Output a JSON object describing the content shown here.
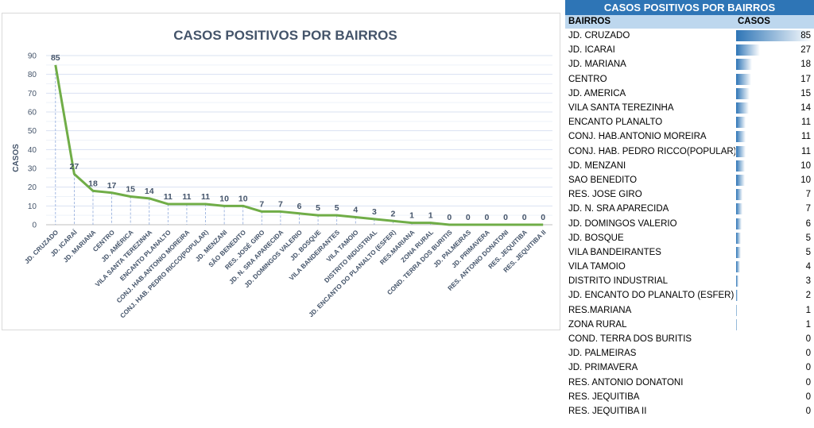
{
  "chart_data": {
    "type": "line",
    "title": "CASOS POSITIVOS POR BAIRROS",
    "xlabel": "",
    "ylabel": "CASOS",
    "ylim": [
      0,
      90
    ],
    "yticks": [
      0,
      10,
      20,
      30,
      40,
      50,
      60,
      70,
      80,
      90
    ],
    "categories": [
      "JD. CRUZADO",
      "JD. ICARAÍ",
      "JD. MARIANA",
      "CENTRO",
      "JD. AMÉRICA",
      "VILA SANTA TEREZINHA",
      "ENCANTO PLANALTO",
      "CONJ. HAB.ANTONIO MOREIRA",
      "CONJ. HAB. PEDRO RICCO(POPULAR)",
      "JD. MENZANI",
      "SÃO BENEDITO",
      "RES. JOSÉ GIRO",
      "JD. N. SRA APARECIDA",
      "JD. DOMINGOS VALERIO",
      "JD. BOSQUE",
      "VILA BANDEIRANTES",
      "VILA TAMOIO",
      "DISTRITO INDUSTRIAL",
      "JD. ENCANTO DO PLANALTO (ESFER)",
      "RES.MARIANA",
      "ZONA RURAL",
      "COND. TERRA DOS BURITIS",
      "JD. PALMEIRAS",
      "JD. PRIMAVERA",
      "RES. ANTONIO DONATONI",
      "RES. JEQUITIBA",
      "RES. JEQUITIBA II"
    ],
    "values": [
      85,
      27,
      18,
      17,
      15,
      14,
      11,
      11,
      11,
      10,
      10,
      7,
      7,
      6,
      5,
      5,
      4,
      3,
      2,
      1,
      1,
      0,
      0,
      0,
      0,
      0,
      0
    ],
    "color": "#70ad47",
    "grid": true
  },
  "table": {
    "title": "CASOS POSITIVOS POR BAIRROS",
    "col_name": "BAIRROS",
    "col_cases": "CASOS",
    "bar_color": "#2e75b6",
    "rows": [
      {
        "name": "JD. CRUZADO",
        "value": 85
      },
      {
        "name": "JD. ICARAÍ",
        "value": 27
      },
      {
        "name": "JD. MARIANA",
        "value": 18
      },
      {
        "name": "CENTRO",
        "value": 17
      },
      {
        "name": "JD. AMÉRICA",
        "value": 15
      },
      {
        "name": "VILA SANTA TEREZINHA",
        "value": 14
      },
      {
        "name": "ENCANTO PLANALTO",
        "value": 11
      },
      {
        "name": "CONJ. HAB.ANTONIO MOREIRA",
        "value": 11
      },
      {
        "name": "CONJ. HAB. PEDRO RICCO(POPULAR)",
        "value": 11
      },
      {
        "name": "JD. MENZANI",
        "value": 10
      },
      {
        "name": "SÃO BENEDITO",
        "value": 10
      },
      {
        "name": "RES. JOSÉ GIRO",
        "value": 7
      },
      {
        "name": "JD. N. SRA APARECIDA",
        "value": 7
      },
      {
        "name": "JD. DOMINGOS VALERIO",
        "value": 6
      },
      {
        "name": "JD. BOSQUE",
        "value": 5
      },
      {
        "name": "VILA BANDEIRANTES",
        "value": 5
      },
      {
        "name": "VILA TAMOIO",
        "value": 4
      },
      {
        "name": "DISTRITO INDUSTRIAL",
        "value": 3
      },
      {
        "name": "JD. ENCANTO DO PLANALTO (ESFER)",
        "value": 2
      },
      {
        "name": "RES.MARIANA",
        "value": 1
      },
      {
        "name": "ZONA RURAL",
        "value": 1
      },
      {
        "name": "COND. TERRA DOS BURITIS",
        "value": 0
      },
      {
        "name": "JD. PALMEIRAS",
        "value": 0
      },
      {
        "name": "JD. PRIMAVERA",
        "value": 0
      },
      {
        "name": "RES. ANTONIO DONATONI",
        "value": 0
      },
      {
        "name": "RES. JEQUITIBA",
        "value": 0
      },
      {
        "name": "RES. JEQUITIBA II",
        "value": 0
      }
    ]
  }
}
